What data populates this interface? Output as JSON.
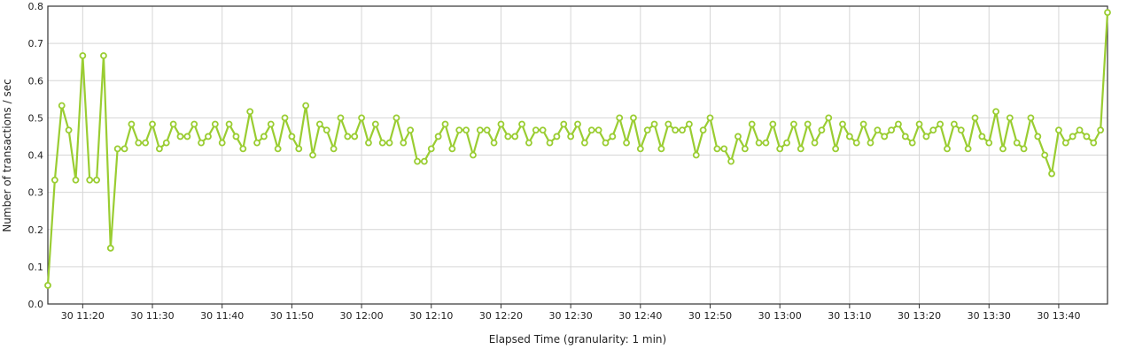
{
  "chart_data": {
    "type": "line",
    "title": "",
    "xlabel": "Elapsed Time (granularity: 1 min)",
    "ylabel": "Number of transactions / sec",
    "ylim": [
      0,
      0.8
    ],
    "yticks": [
      "0.0",
      "0.1",
      "0.2",
      "0.3",
      "0.4",
      "0.5",
      "0.6",
      "0.7",
      "0.8"
    ],
    "xticks": [
      "30 11:20",
      "30 11:30",
      "30 11:40",
      "30 11:50",
      "30 12:00",
      "30 12:10",
      "30 12:20",
      "30 12:30",
      "30 12:40",
      "30 12:50",
      "30 13:00",
      "30 13:10",
      "30 13:20",
      "30 13:30",
      "30 13:40"
    ],
    "x_start": "30 11:15",
    "x_step_minutes": 1,
    "grid": true,
    "legend": "none",
    "color": "#9ACD32",
    "series": [
      {
        "values": [
          0.05,
          0.333,
          0.533,
          0.467,
          0.333,
          0.667,
          0.333,
          0.333,
          0.667,
          0.15,
          0.417,
          0.417,
          0.483,
          0.433,
          0.433,
          0.483,
          0.417,
          0.433,
          0.483,
          0.45,
          0.45,
          0.483,
          0.433,
          0.45,
          0.483,
          0.433,
          0.483,
          0.45,
          0.417,
          0.517,
          0.433,
          0.45,
          0.483,
          0.417,
          0.5,
          0.45,
          0.417,
          0.533,
          0.4,
          0.483,
          0.467,
          0.417,
          0.5,
          0.45,
          0.45,
          0.5,
          0.433,
          0.483,
          0.433,
          0.433,
          0.5,
          0.433,
          0.467,
          0.383,
          0.383,
          0.417,
          0.45,
          0.483,
          0.417,
          0.467,
          0.467,
          0.4,
          0.467,
          0.467,
          0.433,
          0.483,
          0.45,
          0.45,
          0.483,
          0.433,
          0.467,
          0.467,
          0.433,
          0.45,
          0.483,
          0.45,
          0.483,
          0.433,
          0.467,
          0.467,
          0.433,
          0.45,
          0.5,
          0.433,
          0.5,
          0.417,
          0.467,
          0.483,
          0.417,
          0.483,
          0.467,
          0.467,
          0.483,
          0.4,
          0.467,
          0.5,
          0.417,
          0.417,
          0.383,
          0.45,
          0.417,
          0.483,
          0.433,
          0.433,
          0.483,
          0.417,
          0.433,
          0.483,
          0.417,
          0.483,
          0.433,
          0.467,
          0.5,
          0.417,
          0.483,
          0.45,
          0.433,
          0.483,
          0.433,
          0.467,
          0.45,
          0.467,
          0.483,
          0.45,
          0.433,
          0.483,
          0.45,
          0.467,
          0.483,
          0.417,
          0.483,
          0.467,
          0.417,
          0.5,
          0.45,
          0.433,
          0.517,
          0.417,
          0.5,
          0.433,
          0.417,
          0.5,
          0.45,
          0.4,
          0.35,
          0.467,
          0.433,
          0.45,
          0.467,
          0.45,
          0.433,
          0.467,
          0.783
        ]
      }
    ]
  }
}
